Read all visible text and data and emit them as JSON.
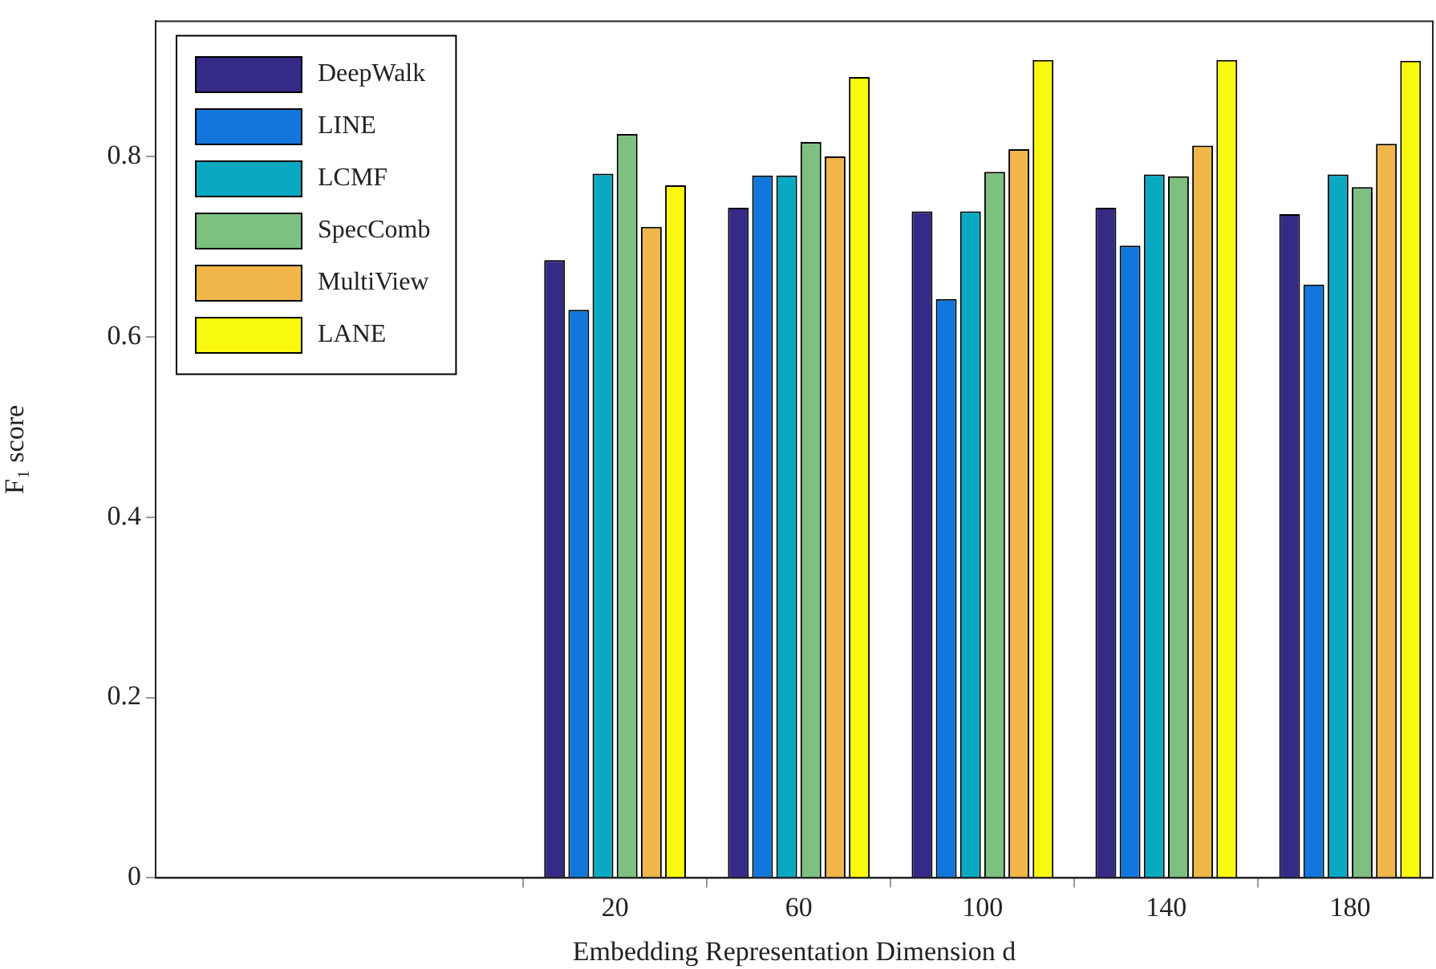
{
  "chart_data": {
    "type": "bar",
    "xlabel": "Embedding Representation Dimension d",
    "ylabel": "F₁ score",
    "x": [
      20,
      60,
      100,
      140,
      180
    ],
    "xlim": [
      -80,
      198
    ],
    "xticks": [
      20,
      60,
      100,
      140,
      180
    ],
    "ylim": [
      0,
      0.95
    ],
    "yticks": [
      0,
      0.2,
      0.4,
      0.6,
      0.8
    ],
    "grid": false,
    "legend": "top left",
    "series": [
      {
        "name": "DeepWalk",
        "color": "#352a87",
        "values": [
          0.685,
          0.743,
          0.739,
          0.743,
          0.736
        ]
      },
      {
        "name": "LINE",
        "color": "#1177dd",
        "values": [
          0.63,
          0.779,
          0.642,
          0.701,
          0.658
        ]
      },
      {
        "name": "LCMF",
        "color": "#09a9c4",
        "values": [
          0.781,
          0.779,
          0.739,
          0.78,
          0.78
        ]
      },
      {
        "name": "SpecComb",
        "color": "#7dc07f",
        "values": [
          0.825,
          0.816,
          0.783,
          0.778,
          0.766
        ]
      },
      {
        "name": "MultiView",
        "color": "#f0b64a",
        "values": [
          0.722,
          0.8,
          0.808,
          0.812,
          0.814
        ]
      },
      {
        "name": "LANE",
        "color": "#f9f90f",
        "values": [
          0.768,
          0.888,
          0.907,
          0.907,
          0.906
        ]
      }
    ]
  }
}
